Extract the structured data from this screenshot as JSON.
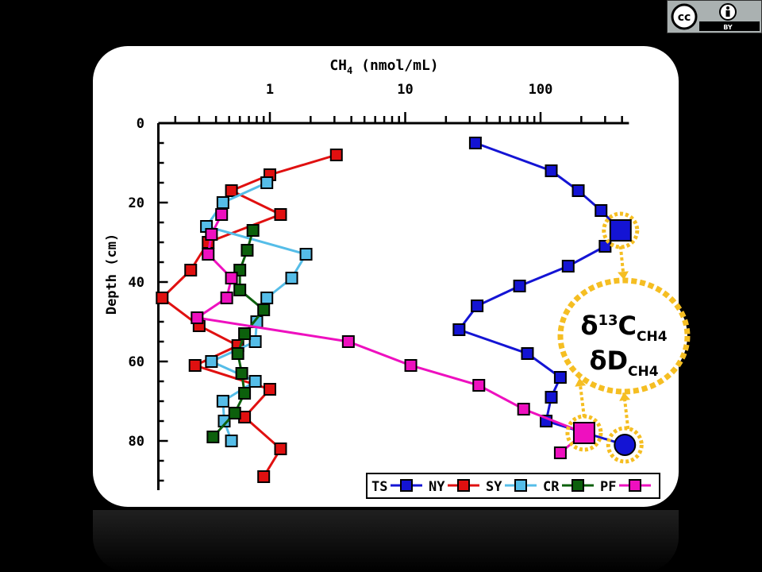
{
  "license_badge": {
    "cc_text": "cc",
    "by_text": "BY"
  },
  "chart_data": {
    "type": "scatter",
    "title": "",
    "xlabel_main": "CH",
    "xlabel_sub": "4",
    "xlabel_unit": "(nmol/mL)",
    "ylabel": "Depth (cm)",
    "x_scale": "log",
    "xlim": [
      0.15,
      450
    ],
    "ylim": [
      0,
      90
    ],
    "x_tick_labels": [
      {
        "value": 1,
        "label": "1"
      },
      {
        "value": 10,
        "label": "10"
      },
      {
        "value": 100,
        "label": "100"
      }
    ],
    "y_tick_labels": [
      {
        "value": 0,
        "label": "0"
      },
      {
        "value": 20,
        "label": "20"
      },
      {
        "value": 40,
        "label": "40"
      },
      {
        "value": 60,
        "label": "60"
      },
      {
        "value": 80,
        "label": "80"
      }
    ],
    "legend_position": "bottom-right",
    "series": [
      {
        "name": "TS",
        "color": "#1414d4",
        "points": [
          [
            33,
            5
          ],
          [
            120,
            12
          ],
          [
            190,
            17
          ],
          [
            280,
            22
          ],
          [
            390,
            27
          ],
          [
            300,
            31
          ],
          [
            160,
            36
          ],
          [
            70,
            41
          ],
          [
            34,
            46
          ],
          [
            25,
            52
          ],
          [
            80,
            58
          ],
          [
            140,
            64
          ],
          [
            120,
            69
          ],
          [
            110,
            75
          ],
          [
            420,
            81
          ]
        ]
      },
      {
        "name": "NY",
        "color": "#e01010",
        "points": [
          [
            3.1,
            8
          ],
          [
            1.0,
            13
          ],
          [
            0.52,
            17
          ],
          [
            1.2,
            23
          ],
          [
            0.35,
            30
          ],
          [
            0.26,
            37
          ],
          [
            0.16,
            44
          ],
          [
            0.3,
            51
          ],
          [
            0.58,
            56
          ],
          [
            0.28,
            61
          ],
          [
            1.0,
            67
          ],
          [
            0.65,
            74
          ],
          [
            1.2,
            82
          ],
          [
            0.9,
            89
          ]
        ]
      },
      {
        "name": "SY",
        "color": "#55bde8",
        "points": [
          [
            0.95,
            15
          ],
          [
            0.45,
            20
          ],
          [
            0.34,
            26
          ],
          [
            1.85,
            33
          ],
          [
            1.45,
            39
          ],
          [
            0.95,
            44
          ],
          [
            0.8,
            50
          ],
          [
            0.78,
            55
          ],
          [
            0.37,
            60
          ],
          [
            0.78,
            65
          ],
          [
            0.45,
            70
          ],
          [
            0.46,
            75
          ],
          [
            0.52,
            80
          ]
        ]
      },
      {
        "name": "CR",
        "color": "#0c600c",
        "points": [
          [
            0.75,
            27
          ],
          [
            0.68,
            32
          ],
          [
            0.6,
            37
          ],
          [
            0.6,
            42
          ],
          [
            0.9,
            47
          ],
          [
            0.65,
            53
          ],
          [
            0.58,
            58
          ],
          [
            0.62,
            63
          ],
          [
            0.65,
            68
          ],
          [
            0.55,
            73
          ],
          [
            0.38,
            79
          ]
        ]
      },
      {
        "name": "PF",
        "color": "#ee10bf",
        "points": [
          [
            0.44,
            23
          ],
          [
            0.37,
            28
          ],
          [
            0.35,
            33
          ],
          [
            0.52,
            39
          ],
          [
            0.48,
            44
          ],
          [
            0.29,
            49
          ],
          [
            3.8,
            55
          ],
          [
            11,
            61
          ],
          [
            35,
            66
          ],
          [
            75,
            72
          ],
          [
            210,
            78
          ],
          [
            140,
            83
          ]
        ]
      }
    ],
    "highlighted_points": [
      {
        "series": "TS",
        "depth": 27
      },
      {
        "series": "PF",
        "depth": 78
      },
      {
        "series": "TS",
        "depth": 81
      }
    ],
    "isotope_bubble": {
      "line1_symbol": "δ",
      "line1_sup": "13",
      "line1_main": "C",
      "line1_sub": "CH4",
      "line2_symbol": "δ",
      "line2_main": "D",
      "line2_sub": "CH4",
      "accent_color": "#f5be22"
    }
  }
}
